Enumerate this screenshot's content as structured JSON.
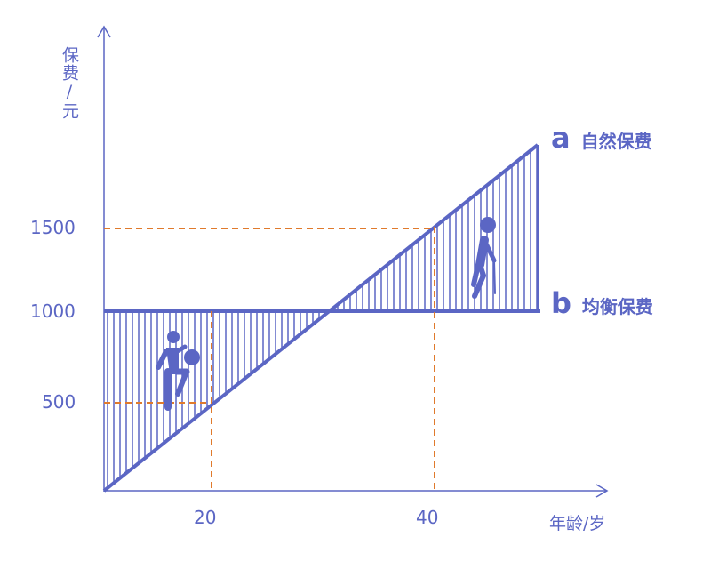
{
  "colors": {
    "primary": "#5b66c4",
    "guide": "#e07a2c"
  },
  "y_axis": {
    "label": "保费/元",
    "ticks": [
      "500",
      "1000",
      "1500"
    ]
  },
  "x_axis": {
    "label": "年龄/岁",
    "ticks": [
      "20",
      "40"
    ]
  },
  "lines": {
    "a": {
      "letter": "a",
      "name": "自然保费"
    },
    "b": {
      "letter": "b",
      "name": "均衡保费"
    }
  },
  "icons": [
    "child-kicking-ball-icon",
    "elderly-person-with-cane-icon"
  ]
}
